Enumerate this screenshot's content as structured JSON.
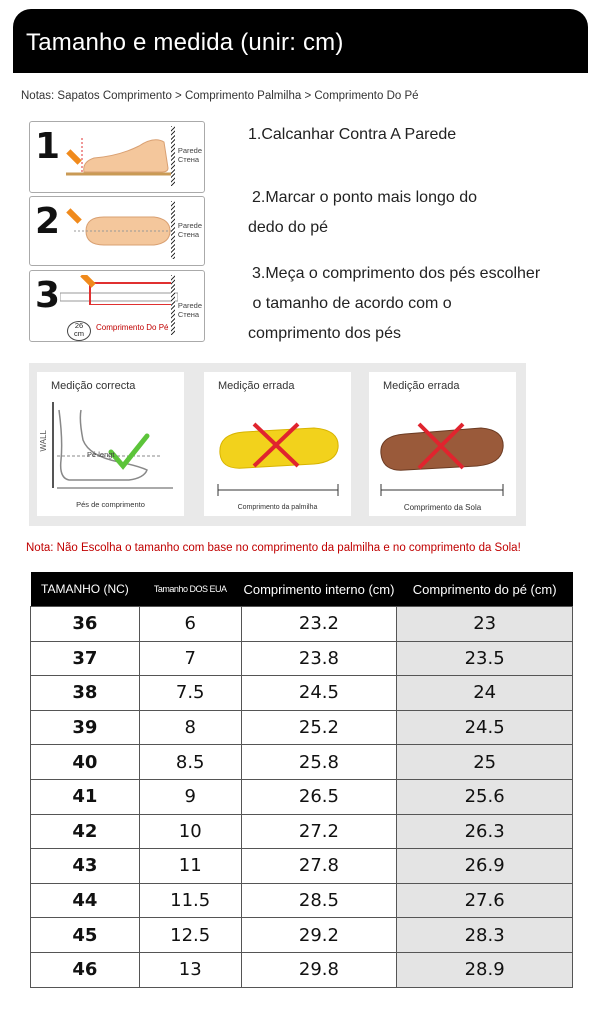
{
  "header": {
    "title": "Tamanho e medida (unir: cm)"
  },
  "notes": "Notas: Sapatos Comprimento > Comprimento Palmilha > Comprimento Do Pé",
  "steps": [
    {
      "num": "1",
      "wall_pt": "Parede",
      "wall_ru": "Стена",
      "text_lines": [
        "1.Calcanhar Contra A Parede"
      ]
    },
    {
      "num": "2",
      "wall_pt": "Parede",
      "wall_ru": "Стена",
      "text_lines": [
        "2.Marcar o ponto mais longo do",
        "dedo do pé"
      ]
    },
    {
      "num": "3",
      "wall_pt": "Parede",
      "wall_ru": "Стена",
      "ruler_value": "26",
      "ruler_unit": "cm",
      "box_label": "Comprimento Do Pé",
      "text_lines": [
        "3.Meça o comprimento dos pés escolher",
        " o tamanho de acordo com o",
        "comprimento dos pés"
      ]
    }
  ],
  "measure": {
    "correct": {
      "title": "Medição correcta",
      "wall": "WALL",
      "arrow_label": "Pé lengt",
      "caption": "Pés de comprimento"
    },
    "wrong1": {
      "title": "Medição errada",
      "caption": "Comprimento da palmilha"
    },
    "wrong2": {
      "title": "Medição errada",
      "caption": "Comprimento da Sola"
    }
  },
  "note2": "Nota: Não Escolha o tamanho com base no comprimento da palmilha e no comprimento da Sola!",
  "colors": {
    "header_bg": "#000000",
    "note_red": "#c00000",
    "check_green": "#5cc43a",
    "cross_red": "#e0242e",
    "insole_yellow": "#f2d21c",
    "sole_brown": "#9a5a3a"
  },
  "table": {
    "headers": [
      "TAMANHO (NC)",
      "Tamanho DOS EUA",
      "Comprimento interno (cm)",
      "Comprimento do pé (cm)"
    ],
    "rows": [
      [
        "36",
        "6",
        "23.2",
        "23"
      ],
      [
        "37",
        "7",
        "23.8",
        "23.5"
      ],
      [
        "38",
        "7.5",
        "24.5",
        "24"
      ],
      [
        "39",
        "8",
        "25.2",
        "24.5"
      ],
      [
        "40",
        "8.5",
        "25.8",
        "25"
      ],
      [
        "41",
        "9",
        "26.5",
        "25.6"
      ],
      [
        "42",
        "10",
        "27.2",
        "26.3"
      ],
      [
        "43",
        "11",
        "27.8",
        "26.9"
      ],
      [
        "44",
        "11.5",
        "28.5",
        "27.6"
      ],
      [
        "45",
        "12.5",
        "29.2",
        "28.3"
      ],
      [
        "46",
        "13",
        "29.8",
        "28.9"
      ]
    ]
  }
}
